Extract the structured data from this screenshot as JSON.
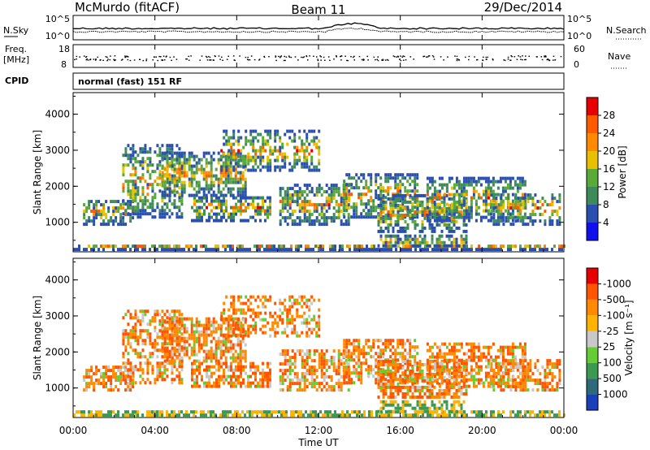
{
  "header": {
    "station": "McMurdo (fitACF)",
    "beam": "Beam 11",
    "date": "29/Dec/2014"
  },
  "strips": {
    "nsky_label": "N.Sky",
    "nsky_ticks": [
      "10^5",
      "10^0"
    ],
    "nsearch_label": "N.Search",
    "nsearch_ticks": [
      "10^5",
      "10^0"
    ],
    "freq_label_1": "Freq.",
    "freq_label_2": "[MHz]",
    "freq_ticks": [
      "18",
      "8"
    ],
    "nave_label": "Nave",
    "nave_ticks": [
      "60",
      "0"
    ],
    "cpid_label": "CPID",
    "cpid_value": "normal (fast) 151 RF"
  },
  "chart_data": [
    {
      "type": "heatmap",
      "title": "",
      "xlabel": "Time UT",
      "ylabel": "Slant Range [km]",
      "x_ticks": [
        "00:00",
        "04:00",
        "08:00",
        "12:00",
        "16:00",
        "20:00",
        "00:00"
      ],
      "y_ticks": [
        "1000",
        "2000",
        "3000",
        "4000"
      ],
      "ylim": [
        180,
        4600
      ],
      "colorbar": {
        "label": "Power [dB]",
        "ticks": [
          "4",
          "8",
          "12",
          "16",
          "20",
          "24",
          "28"
        ],
        "colors": [
          "#1010ee",
          "#2a4fb0",
          "#3f8a5a",
          "#5aaa3a",
          "#e8c000",
          "#ff8a00",
          "#ff5a00",
          "#e80000"
        ]
      }
    },
    {
      "type": "heatmap",
      "title": "",
      "xlabel": "Time UT",
      "ylabel": "Slant Range [km]",
      "x_ticks": [
        "00:00",
        "04:00",
        "08:00",
        "12:00",
        "16:00",
        "20:00",
        "00:00"
      ],
      "y_ticks": [
        "1000",
        "2000",
        "3000",
        "4000"
      ],
      "ylim": [
        180,
        4600
      ],
      "colorbar": {
        "label": "Velocity [m s⁻¹]",
        "ticks": [
          "1000",
          "500",
          "100",
          "25",
          "-25",
          "-100",
          "-500",
          "-1000"
        ],
        "colors": [
          "#1a3fb8",
          "#2e6a7a",
          "#3c9a50",
          "#66cc33",
          "#c8c8c8",
          "#ffb300",
          "#ff8a00",
          "#ff5500",
          "#e80000"
        ]
      }
    }
  ]
}
